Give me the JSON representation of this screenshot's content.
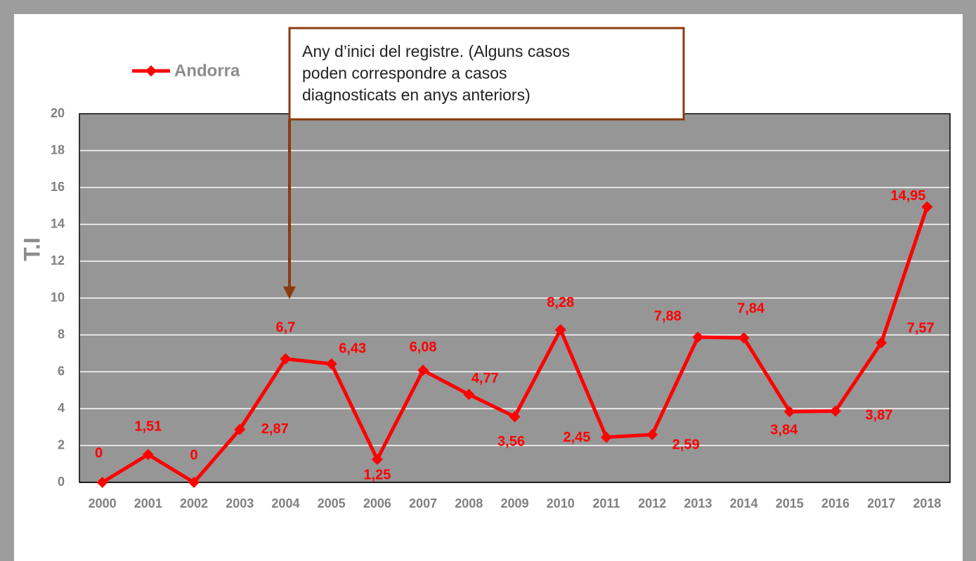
{
  "chart_data": {
    "type": "line",
    "categories": [
      "2000",
      "2001",
      "2002",
      "2003",
      "2004",
      "2005",
      "2006",
      "2007",
      "2008",
      "2009",
      "2010",
      "2011",
      "2012",
      "2013",
      "2014",
      "2015",
      "2016",
      "2017",
      "2018"
    ],
    "series": [
      {
        "name": "Andorra",
        "color": "#ff0000",
        "values": [
          0,
          1.51,
          0,
          2.87,
          6.7,
          6.43,
          1.25,
          6.08,
          4.77,
          3.56,
          8.28,
          2.45,
          2.59,
          7.88,
          7.84,
          3.84,
          3.87,
          7.57,
          14.95
        ],
        "value_labels": [
          "0",
          "1,51",
          "0",
          "2,87",
          "6,7",
          "6,43",
          "1,25",
          "6,08",
          "4,77",
          "3,56",
          "8,28",
          "2,45",
          "2,59",
          "7,88",
          "7,84",
          "3,84",
          "3,87",
          "7,57",
          "14,95"
        ]
      }
    ],
    "ylabel": "T.I",
    "ylim": [
      0,
      20
    ],
    "yticks": [
      0,
      2,
      4,
      6,
      8,
      10,
      12,
      14,
      16,
      18,
      20
    ],
    "grid": true,
    "annotation": [
      "Any d’inici del registre. (Alguns casos",
      "poden correspondre a casos",
      "diagnosticats en anys anteriors)"
    ]
  }
}
